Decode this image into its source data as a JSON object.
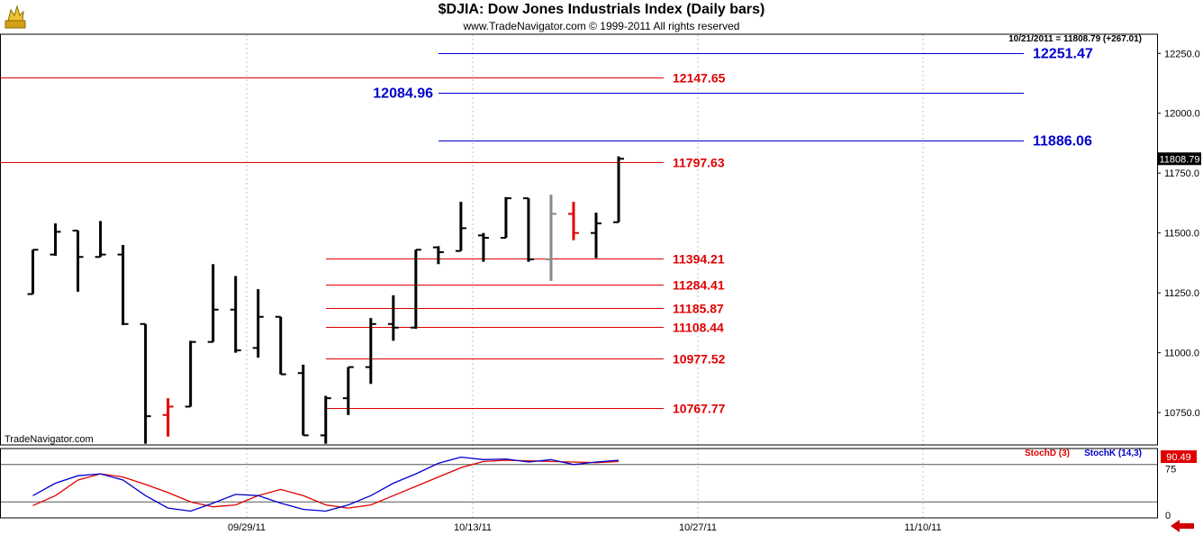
{
  "header": {
    "title": "$DJIA:  Dow Jones Industrials Index  (Daily bars)",
    "subtitle": "www.TradeNavigator.com © 1999-2011 All rights reserved",
    "last_bar_info": "10/21/2011 = 11808.79 (+267.01)",
    "watermark": "TradeNavigator.com"
  },
  "icons": {
    "logo": "bull-bear-logo-icon",
    "nav": "left-arrow-icon"
  },
  "colors": {
    "bar": "#000000",
    "down_bar": "#e00000",
    "flat_bar": "#888888",
    "red_level": "#e00000",
    "blue_level": "#0000cc",
    "stochD": "#e00000",
    "stochK": "#0000cc",
    "grid": "#c0c0c0"
  },
  "chart_data": [
    {
      "type": "ohlc",
      "title": "$DJIA:  Dow Jones Industrials Index  (Daily bars)",
      "y_ticks": [
        "10750.0",
        "11000.0",
        "11250.0",
        "11500.0",
        "11750.0",
        "12000.0",
        "12250.0"
      ],
      "ylim": [
        10615,
        12330
      ],
      "x_ticks": [
        "09/29/11",
        "10/13/11",
        "10/27/11",
        "11/10/11"
      ],
      "last_value_label": "11808.79",
      "bars": [
        {
          "o": 11245,
          "h": 11430,
          "l": 11245,
          "c": 11430,
          "color": "black"
        },
        {
          "o": 11410,
          "h": 11540,
          "l": 11405,
          "c": 11505,
          "color": "black"
        },
        {
          "o": 11510,
          "h": 11510,
          "l": 11255,
          "c": 11400,
          "color": "black"
        },
        {
          "o": 11400,
          "h": 11550,
          "l": 11400,
          "c": 11410,
          "color": "black"
        },
        {
          "o": 11410,
          "h": 11450,
          "l": 11115,
          "c": 11120,
          "color": "black"
        },
        {
          "o": 11120,
          "h": 11120,
          "l": 10620,
          "c": 10735,
          "color": "black"
        },
        {
          "o": 10740,
          "h": 10810,
          "l": 10650,
          "c": 10775,
          "color": "red"
        },
        {
          "o": 10775,
          "h": 11050,
          "l": 10775,
          "c": 11045,
          "color": "black"
        },
        {
          "o": 11045,
          "h": 11370,
          "l": 11045,
          "c": 11180,
          "color": "black"
        },
        {
          "o": 11180,
          "h": 11320,
          "l": 11000,
          "c": 11010,
          "color": "black"
        },
        {
          "o": 11020,
          "h": 11265,
          "l": 10980,
          "c": 11150,
          "color": "black"
        },
        {
          "o": 11150,
          "h": 11150,
          "l": 10910,
          "c": 10910,
          "color": "black"
        },
        {
          "o": 10915,
          "h": 10950,
          "l": 10655,
          "c": 10655,
          "color": "black"
        },
        {
          "o": 10655,
          "h": 10820,
          "l": 10620,
          "c": 10810,
          "color": "black"
        },
        {
          "o": 10810,
          "h": 10940,
          "l": 10740,
          "c": 10940,
          "color": "black"
        },
        {
          "o": 10940,
          "h": 11145,
          "l": 10870,
          "c": 11120,
          "color": "black"
        },
        {
          "o": 11120,
          "h": 11240,
          "l": 11050,
          "c": 11105,
          "color": "black"
        },
        {
          "o": 11105,
          "h": 11430,
          "l": 11100,
          "c": 11430,
          "color": "black"
        },
        {
          "o": 11440,
          "h": 11445,
          "l": 11370,
          "c": 11420,
          "color": "black"
        },
        {
          "o": 11425,
          "h": 11630,
          "l": 11425,
          "c": 11520,
          "color": "black"
        },
        {
          "o": 11490,
          "h": 11500,
          "l": 11380,
          "c": 11480,
          "color": "black"
        },
        {
          "o": 11480,
          "h": 11650,
          "l": 11480,
          "c": 11645,
          "color": "black"
        },
        {
          "o": 11645,
          "h": 11645,
          "l": 11380,
          "c": 11390,
          "color": "black"
        },
        {
          "o": 11390,
          "h": 11660,
          "l": 11300,
          "c": 11580,
          "color": "gray"
        },
        {
          "o": 11580,
          "h": 11630,
          "l": 11470,
          "c": 11500,
          "color": "red"
        },
        {
          "o": 11500,
          "h": 11585,
          "l": 11395,
          "c": 11540,
          "color": "black"
        },
        {
          "o": 11545,
          "h": 11820,
          "l": 11545,
          "c": 11810,
          "color": "black"
        }
      ],
      "levels": [
        {
          "value": 12251.47,
          "label": "12251.47",
          "color": "blue",
          "side": "right",
          "x_start": "10/06/11"
        },
        {
          "value": 12147.65,
          "label": "12147.65",
          "color": "red",
          "side": "center",
          "x_start": "09/15/11"
        },
        {
          "value": 12084.96,
          "label": "12084.96",
          "color": "blue",
          "side": "left",
          "x_start": "10/06/11"
        },
        {
          "value": 11886.06,
          "label": "11886.06",
          "color": "blue",
          "side": "right",
          "x_start": "10/06/11"
        },
        {
          "value": 11797.63,
          "label": "11797.63",
          "color": "red",
          "side": "center",
          "x_start": "09/15/11"
        },
        {
          "value": 11394.21,
          "label": "11394.21",
          "color": "red",
          "side": "center",
          "x_start": "10/03/11"
        },
        {
          "value": 11284.41,
          "label": "11284.41",
          "color": "red",
          "side": "center",
          "x_start": "10/03/11"
        },
        {
          "value": 11185.87,
          "label": "11185.87",
          "color": "red",
          "side": "center",
          "x_start": "10/03/11"
        },
        {
          "value": 11108.44,
          "label": "11108.44",
          "color": "red",
          "side": "center",
          "x_start": "10/03/11"
        },
        {
          "value": 10977.52,
          "label": "10977.52",
          "color": "red",
          "side": "center",
          "x_start": "10/03/11"
        },
        {
          "value": 10767.77,
          "label": "10767.77",
          "color": "red",
          "side": "center",
          "x_start": "10/03/11"
        }
      ]
    },
    {
      "type": "line",
      "ylim": [
        0,
        100
      ],
      "y_ticks": [
        "75",
        "0"
      ],
      "ref_lines": [
        80,
        20
      ],
      "last_value_label": "90.49",
      "series": [
        {
          "name": "StochD (3)",
          "color": "red",
          "values": [
            14,
            30,
            55,
            65,
            60,
            48,
            35,
            20,
            12,
            15,
            30,
            40,
            30,
            15,
            10,
            15,
            30,
            45,
            60,
            75,
            85,
            87,
            86,
            85,
            84,
            83,
            85
          ]
        },
        {
          "name": "StochK (14,3)",
          "color": "blue",
          "values": [
            30,
            50,
            62,
            65,
            55,
            30,
            10,
            5,
            18,
            32,
            30,
            18,
            8,
            5,
            15,
            30,
            50,
            65,
            82,
            92,
            88,
            89,
            84,
            88,
            80,
            84,
            87
          ]
        }
      ]
    }
  ]
}
